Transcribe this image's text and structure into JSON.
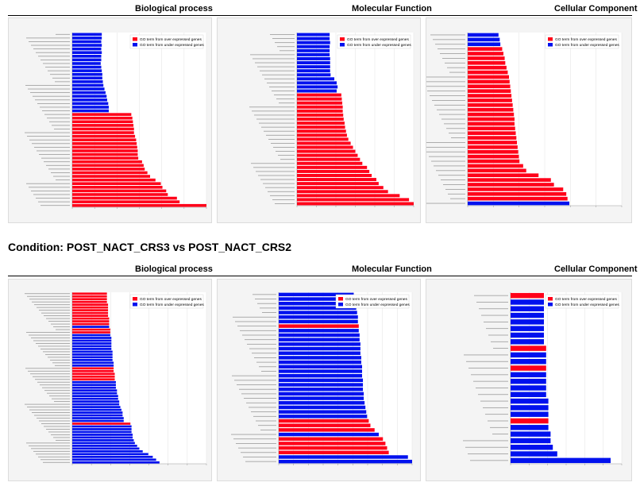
{
  "header_top": {
    "bio": "Biological process",
    "mol": "Molecular Function",
    "cell": "Cellular Component"
  },
  "condition": "Condition: POST_NACT_CRS3 vs POST_NACT_CRS2",
  "header_bottom": {
    "bio": "Biological process",
    "mol": "Molecular Function",
    "cell": "Cellular Component"
  },
  "colors": {
    "over": "#ff0019",
    "under": "#0011ee",
    "panel_bg": "#f4f4f4"
  },
  "chart_data": [
    {
      "type": "bar",
      "orientation": "horizontal",
      "legend": [
        "GO term from over expressed genes",
        "GO term from under expressed genes"
      ],
      "legend_position": "top-right",
      "series_colors": {
        "over": "#ff0019",
        "under": "#0011ee"
      },
      "xlim": [
        0,
        25
      ],
      "under": [
        5.5,
        5.5,
        5.4,
        5.5,
        5.4,
        5.5,
        5.4,
        5.4,
        5.3,
        5.4,
        5.5,
        5.6,
        5.6,
        5.7,
        5.8,
        6.0,
        6.2,
        6.4,
        6.5,
        6.7,
        6.8,
        6.8
      ],
      "over": [
        11.0,
        11.2,
        11.3,
        11.4,
        11.5,
        11.5,
        11.7,
        11.9,
        12.0,
        12.1,
        12.2,
        12.2,
        12.3,
        13.0,
        13.3,
        13.5,
        14.0,
        14.5,
        15.5,
        16.5,
        16.8,
        17.5,
        17.8,
        19.5,
        20.0,
        25.0
      ]
    },
    {
      "type": "bar",
      "orientation": "horizontal",
      "legend": [
        "GO term from over expressed genes",
        "GO term from under expressed genes"
      ],
      "legend_position": "top-right",
      "series_colors": {
        "over": "#ff0019",
        "under": "#0011ee"
      },
      "xlim": [
        0,
        25
      ],
      "under": [
        7.0,
        7.0,
        7.1,
        7.0,
        7.0,
        7.0,
        7.1,
        7.1,
        7.1,
        7.1,
        7.2,
        8.0,
        8.5,
        8.7,
        8.5
      ],
      "over": [
        9.5,
        9.6,
        9.7,
        9.8,
        9.8,
        9.9,
        10.0,
        10.2,
        10.3,
        10.5,
        10.7,
        11.0,
        11.5,
        12.0,
        12.5,
        13.0,
        13.5,
        14.0,
        15.0,
        15.5,
        16.0,
        17.0,
        17.5,
        18.5,
        19.5,
        22.0,
        24.0,
        25.0
      ]
    },
    {
      "type": "bar",
      "orientation": "horizontal",
      "legend": [
        "GO term from over expressed genes",
        "GO term from under expressed genes"
      ],
      "legend_position": "top-right",
      "series_colors": {
        "over": "#ff0019",
        "under": "#0011ee"
      },
      "xlim": [
        0,
        25
      ],
      "bars": [
        {
          "v": 5.0,
          "s": "under"
        },
        {
          "v": 5.2,
          "s": "under"
        },
        {
          "v": 5.3,
          "s": "under"
        },
        {
          "v": 5.6,
          "s": "over"
        },
        {
          "v": 5.8,
          "s": "over"
        },
        {
          "v": 6.0,
          "s": "over"
        },
        {
          "v": 6.1,
          "s": "over"
        },
        {
          "v": 6.3,
          "s": "over"
        },
        {
          "v": 6.5,
          "s": "over"
        },
        {
          "v": 6.7,
          "s": "over"
        },
        {
          "v": 6.8,
          "s": "over"
        },
        {
          "v": 6.9,
          "s": "over"
        },
        {
          "v": 7.0,
          "s": "over"
        },
        {
          "v": 7.1,
          "s": "over"
        },
        {
          "v": 7.2,
          "s": "over"
        },
        {
          "v": 7.3,
          "s": "over"
        },
        {
          "v": 7.4,
          "s": "over"
        },
        {
          "v": 7.5,
          "s": "over"
        },
        {
          "v": 7.6,
          "s": "over"
        },
        {
          "v": 7.6,
          "s": "over"
        },
        {
          "v": 7.7,
          "s": "over"
        },
        {
          "v": 7.8,
          "s": "over"
        },
        {
          "v": 7.9,
          "s": "over"
        },
        {
          "v": 8.0,
          "s": "over"
        },
        {
          "v": 8.1,
          "s": "over"
        },
        {
          "v": 8.2,
          "s": "over"
        },
        {
          "v": 8.3,
          "s": "over"
        },
        {
          "v": 8.4,
          "s": "over"
        },
        {
          "v": 9.0,
          "s": "over"
        },
        {
          "v": 9.5,
          "s": "over"
        },
        {
          "v": 11.5,
          "s": "over"
        },
        {
          "v": 13.5,
          "s": "over"
        },
        {
          "v": 14.0,
          "s": "over"
        },
        {
          "v": 15.5,
          "s": "over"
        },
        {
          "v": 16.0,
          "s": "over"
        },
        {
          "v": 16.2,
          "s": "over"
        },
        {
          "v": 16.5,
          "s": "under"
        }
      ]
    },
    {
      "type": "bar",
      "orientation": "horizontal",
      "legend": [
        "GO term from over expressed genes",
        "GO term from under expressed genes"
      ],
      "legend_position": "top-right",
      "series_colors": {
        "over": "#ff0019",
        "under": "#0011ee"
      },
      "xlim": [
        0,
        12
      ],
      "bars": [
        {
          "v": 3.1,
          "s": "over"
        },
        {
          "v": 3.1,
          "s": "over"
        },
        {
          "v": 3.1,
          "s": "over"
        },
        {
          "v": 3.1,
          "s": "over"
        },
        {
          "v": 3.2,
          "s": "over"
        },
        {
          "v": 3.2,
          "s": "over"
        },
        {
          "v": 3.2,
          "s": "over"
        },
        {
          "v": 3.2,
          "s": "over"
        },
        {
          "v": 3.2,
          "s": "over"
        },
        {
          "v": 3.3,
          "s": "over"
        },
        {
          "v": 3.3,
          "s": "over"
        },
        {
          "v": 3.3,
          "s": "over"
        },
        {
          "v": 3.3,
          "s": "under"
        },
        {
          "v": 3.4,
          "s": "over"
        },
        {
          "v": 3.4,
          "s": "over"
        },
        {
          "v": 3.4,
          "s": "under"
        },
        {
          "v": 3.5,
          "s": "under"
        },
        {
          "v": 3.5,
          "s": "under"
        },
        {
          "v": 3.5,
          "s": "under"
        },
        {
          "v": 3.5,
          "s": "under"
        },
        {
          "v": 3.5,
          "s": "under"
        },
        {
          "v": 3.6,
          "s": "under"
        },
        {
          "v": 3.6,
          "s": "under"
        },
        {
          "v": 3.6,
          "s": "under"
        },
        {
          "v": 3.6,
          "s": "under"
        },
        {
          "v": 3.7,
          "s": "under"
        },
        {
          "v": 3.7,
          "s": "under"
        },
        {
          "v": 3.7,
          "s": "over"
        },
        {
          "v": 3.7,
          "s": "over"
        },
        {
          "v": 3.8,
          "s": "over"
        },
        {
          "v": 3.8,
          "s": "over"
        },
        {
          "v": 3.8,
          "s": "over"
        },
        {
          "v": 3.9,
          "s": "under"
        },
        {
          "v": 3.9,
          "s": "under"
        },
        {
          "v": 3.9,
          "s": "under"
        },
        {
          "v": 4.0,
          "s": "under"
        },
        {
          "v": 4.0,
          "s": "under"
        },
        {
          "v": 4.1,
          "s": "under"
        },
        {
          "v": 4.1,
          "s": "under"
        },
        {
          "v": 4.2,
          "s": "under"
        },
        {
          "v": 4.2,
          "s": "under"
        },
        {
          "v": 4.3,
          "s": "under"
        },
        {
          "v": 4.4,
          "s": "under"
        },
        {
          "v": 4.5,
          "s": "under"
        },
        {
          "v": 4.5,
          "s": "under"
        },
        {
          "v": 4.6,
          "s": "under"
        },
        {
          "v": 4.6,
          "s": "under"
        },
        {
          "v": 5.2,
          "s": "over"
        },
        {
          "v": 5.3,
          "s": "under"
        },
        {
          "v": 5.3,
          "s": "under"
        },
        {
          "v": 5.3,
          "s": "under"
        },
        {
          "v": 5.4,
          "s": "under"
        },
        {
          "v": 5.4,
          "s": "under"
        },
        {
          "v": 5.5,
          "s": "under"
        },
        {
          "v": 5.6,
          "s": "under"
        },
        {
          "v": 5.8,
          "s": "under"
        },
        {
          "v": 6.0,
          "s": "under"
        },
        {
          "v": 6.3,
          "s": "under"
        },
        {
          "v": 6.8,
          "s": "under"
        },
        {
          "v": 7.2,
          "s": "under"
        },
        {
          "v": 7.5,
          "s": "under"
        },
        {
          "v": 7.8,
          "s": "under"
        }
      ]
    },
    {
      "type": "bar",
      "orientation": "horizontal",
      "legend": [
        "GO term from over expressed genes",
        "GO term from under expressed genes"
      ],
      "legend_position": "top-right",
      "series_colors": {
        "over": "#ff0019",
        "under": "#0011ee"
      },
      "xlim": [
        0,
        16
      ],
      "bars": [
        {
          "v": 9.0,
          "s": "under"
        },
        {
          "v": 9.2,
          "s": "under"
        },
        {
          "v": 9.3,
          "s": "under"
        },
        {
          "v": 9.3,
          "s": "under"
        },
        {
          "v": 9.4,
          "s": "under"
        },
        {
          "v": 9.5,
          "s": "under"
        },
        {
          "v": 9.5,
          "s": "under"
        },
        {
          "v": 9.6,
          "s": "over"
        },
        {
          "v": 9.6,
          "s": "under"
        },
        {
          "v": 9.7,
          "s": "under"
        },
        {
          "v": 9.7,
          "s": "under"
        },
        {
          "v": 9.8,
          "s": "under"
        },
        {
          "v": 9.8,
          "s": "under"
        },
        {
          "v": 9.8,
          "s": "under"
        },
        {
          "v": 9.9,
          "s": "under"
        },
        {
          "v": 9.9,
          "s": "under"
        },
        {
          "v": 10.0,
          "s": "under"
        },
        {
          "v": 10.0,
          "s": "under"
        },
        {
          "v": 10.0,
          "s": "under"
        },
        {
          "v": 10.1,
          "s": "under"
        },
        {
          "v": 10.1,
          "s": "under"
        },
        {
          "v": 10.1,
          "s": "under"
        },
        {
          "v": 10.2,
          "s": "under"
        },
        {
          "v": 10.2,
          "s": "under"
        },
        {
          "v": 10.3,
          "s": "under"
        },
        {
          "v": 10.4,
          "s": "under"
        },
        {
          "v": 10.5,
          "s": "under"
        },
        {
          "v": 10.6,
          "s": "under"
        },
        {
          "v": 10.8,
          "s": "over"
        },
        {
          "v": 11.0,
          "s": "over"
        },
        {
          "v": 11.5,
          "s": "over"
        },
        {
          "v": 12.0,
          "s": "under"
        },
        {
          "v": 12.5,
          "s": "over"
        },
        {
          "v": 12.8,
          "s": "over"
        },
        {
          "v": 13.0,
          "s": "over"
        },
        {
          "v": 13.2,
          "s": "over"
        },
        {
          "v": 15.5,
          "s": "under"
        },
        {
          "v": 16.0,
          "s": "under"
        }
      ]
    },
    {
      "type": "bar",
      "orientation": "horizontal",
      "legend": [
        "GO term from over expressed genes",
        "GO term from under expressed genes"
      ],
      "legend_position": "top-right",
      "series_colors": {
        "over": "#ff0019",
        "under": "#0011ee"
      },
      "xlim": [
        0,
        5
      ],
      "bars": [
        {
          "v": 1.5,
          "s": "over"
        },
        {
          "v": 1.5,
          "s": "under"
        },
        {
          "v": 1.5,
          "s": "under"
        },
        {
          "v": 1.5,
          "s": "under"
        },
        {
          "v": 1.5,
          "s": "under"
        },
        {
          "v": 1.5,
          "s": "under"
        },
        {
          "v": 1.5,
          "s": "under"
        },
        {
          "v": 1.5,
          "s": "under"
        },
        {
          "v": 1.6,
          "s": "over"
        },
        {
          "v": 1.6,
          "s": "under"
        },
        {
          "v": 1.6,
          "s": "under"
        },
        {
          "v": 1.6,
          "s": "over"
        },
        {
          "v": 1.6,
          "s": "under"
        },
        {
          "v": 1.6,
          "s": "under"
        },
        {
          "v": 1.6,
          "s": "under"
        },
        {
          "v": 1.6,
          "s": "under"
        },
        {
          "v": 1.7,
          "s": "under"
        },
        {
          "v": 1.7,
          "s": "under"
        },
        {
          "v": 1.7,
          "s": "under"
        },
        {
          "v": 1.7,
          "s": "over"
        },
        {
          "v": 1.7,
          "s": "under"
        },
        {
          "v": 1.8,
          "s": "under"
        },
        {
          "v": 1.8,
          "s": "under"
        },
        {
          "v": 1.9,
          "s": "under"
        },
        {
          "v": 2.1,
          "s": "under"
        },
        {
          "v": 4.5,
          "s": "under"
        }
      ]
    }
  ]
}
